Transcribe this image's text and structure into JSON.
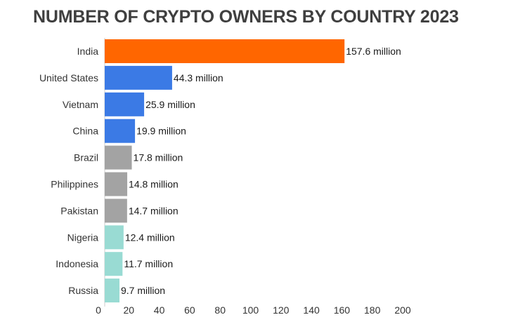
{
  "chart_data": {
    "type": "bar",
    "orientation": "horizontal",
    "title": "NUMBER OF CRYPTO OWNERS BY COUNTRY 2023",
    "categories": [
      "India",
      "United States",
      "Vietnam",
      "China",
      "Brazil",
      "Philippines",
      "Pakistan",
      "Nigeria",
      "Indonesia",
      "Russia"
    ],
    "values": [
      157.6,
      44.3,
      25.9,
      19.9,
      17.8,
      14.8,
      14.7,
      12.4,
      11.7,
      9.7
    ],
    "value_labels": [
      "157.6 million",
      "44.3 million",
      "25.9 million",
      "19.9 million",
      "17.8 million",
      "14.8 million",
      "14.7 million",
      "12.4 million",
      "11.7 million",
      "9.7 million"
    ],
    "bar_colors": [
      "#ff6600",
      "#3b7ae5",
      "#3b7ae5",
      "#3b7ae5",
      "#a3a3a3",
      "#a3a3a3",
      "#a3a3a3",
      "#99dbd3",
      "#99dbd3",
      "#99dbd3"
    ],
    "xlim": [
      0,
      200
    ],
    "xticks": [
      "0",
      "20",
      "40",
      "60",
      "80",
      "100",
      "120",
      "140",
      "160",
      "180",
      "200"
    ],
    "grid": false,
    "legend": "none"
  }
}
